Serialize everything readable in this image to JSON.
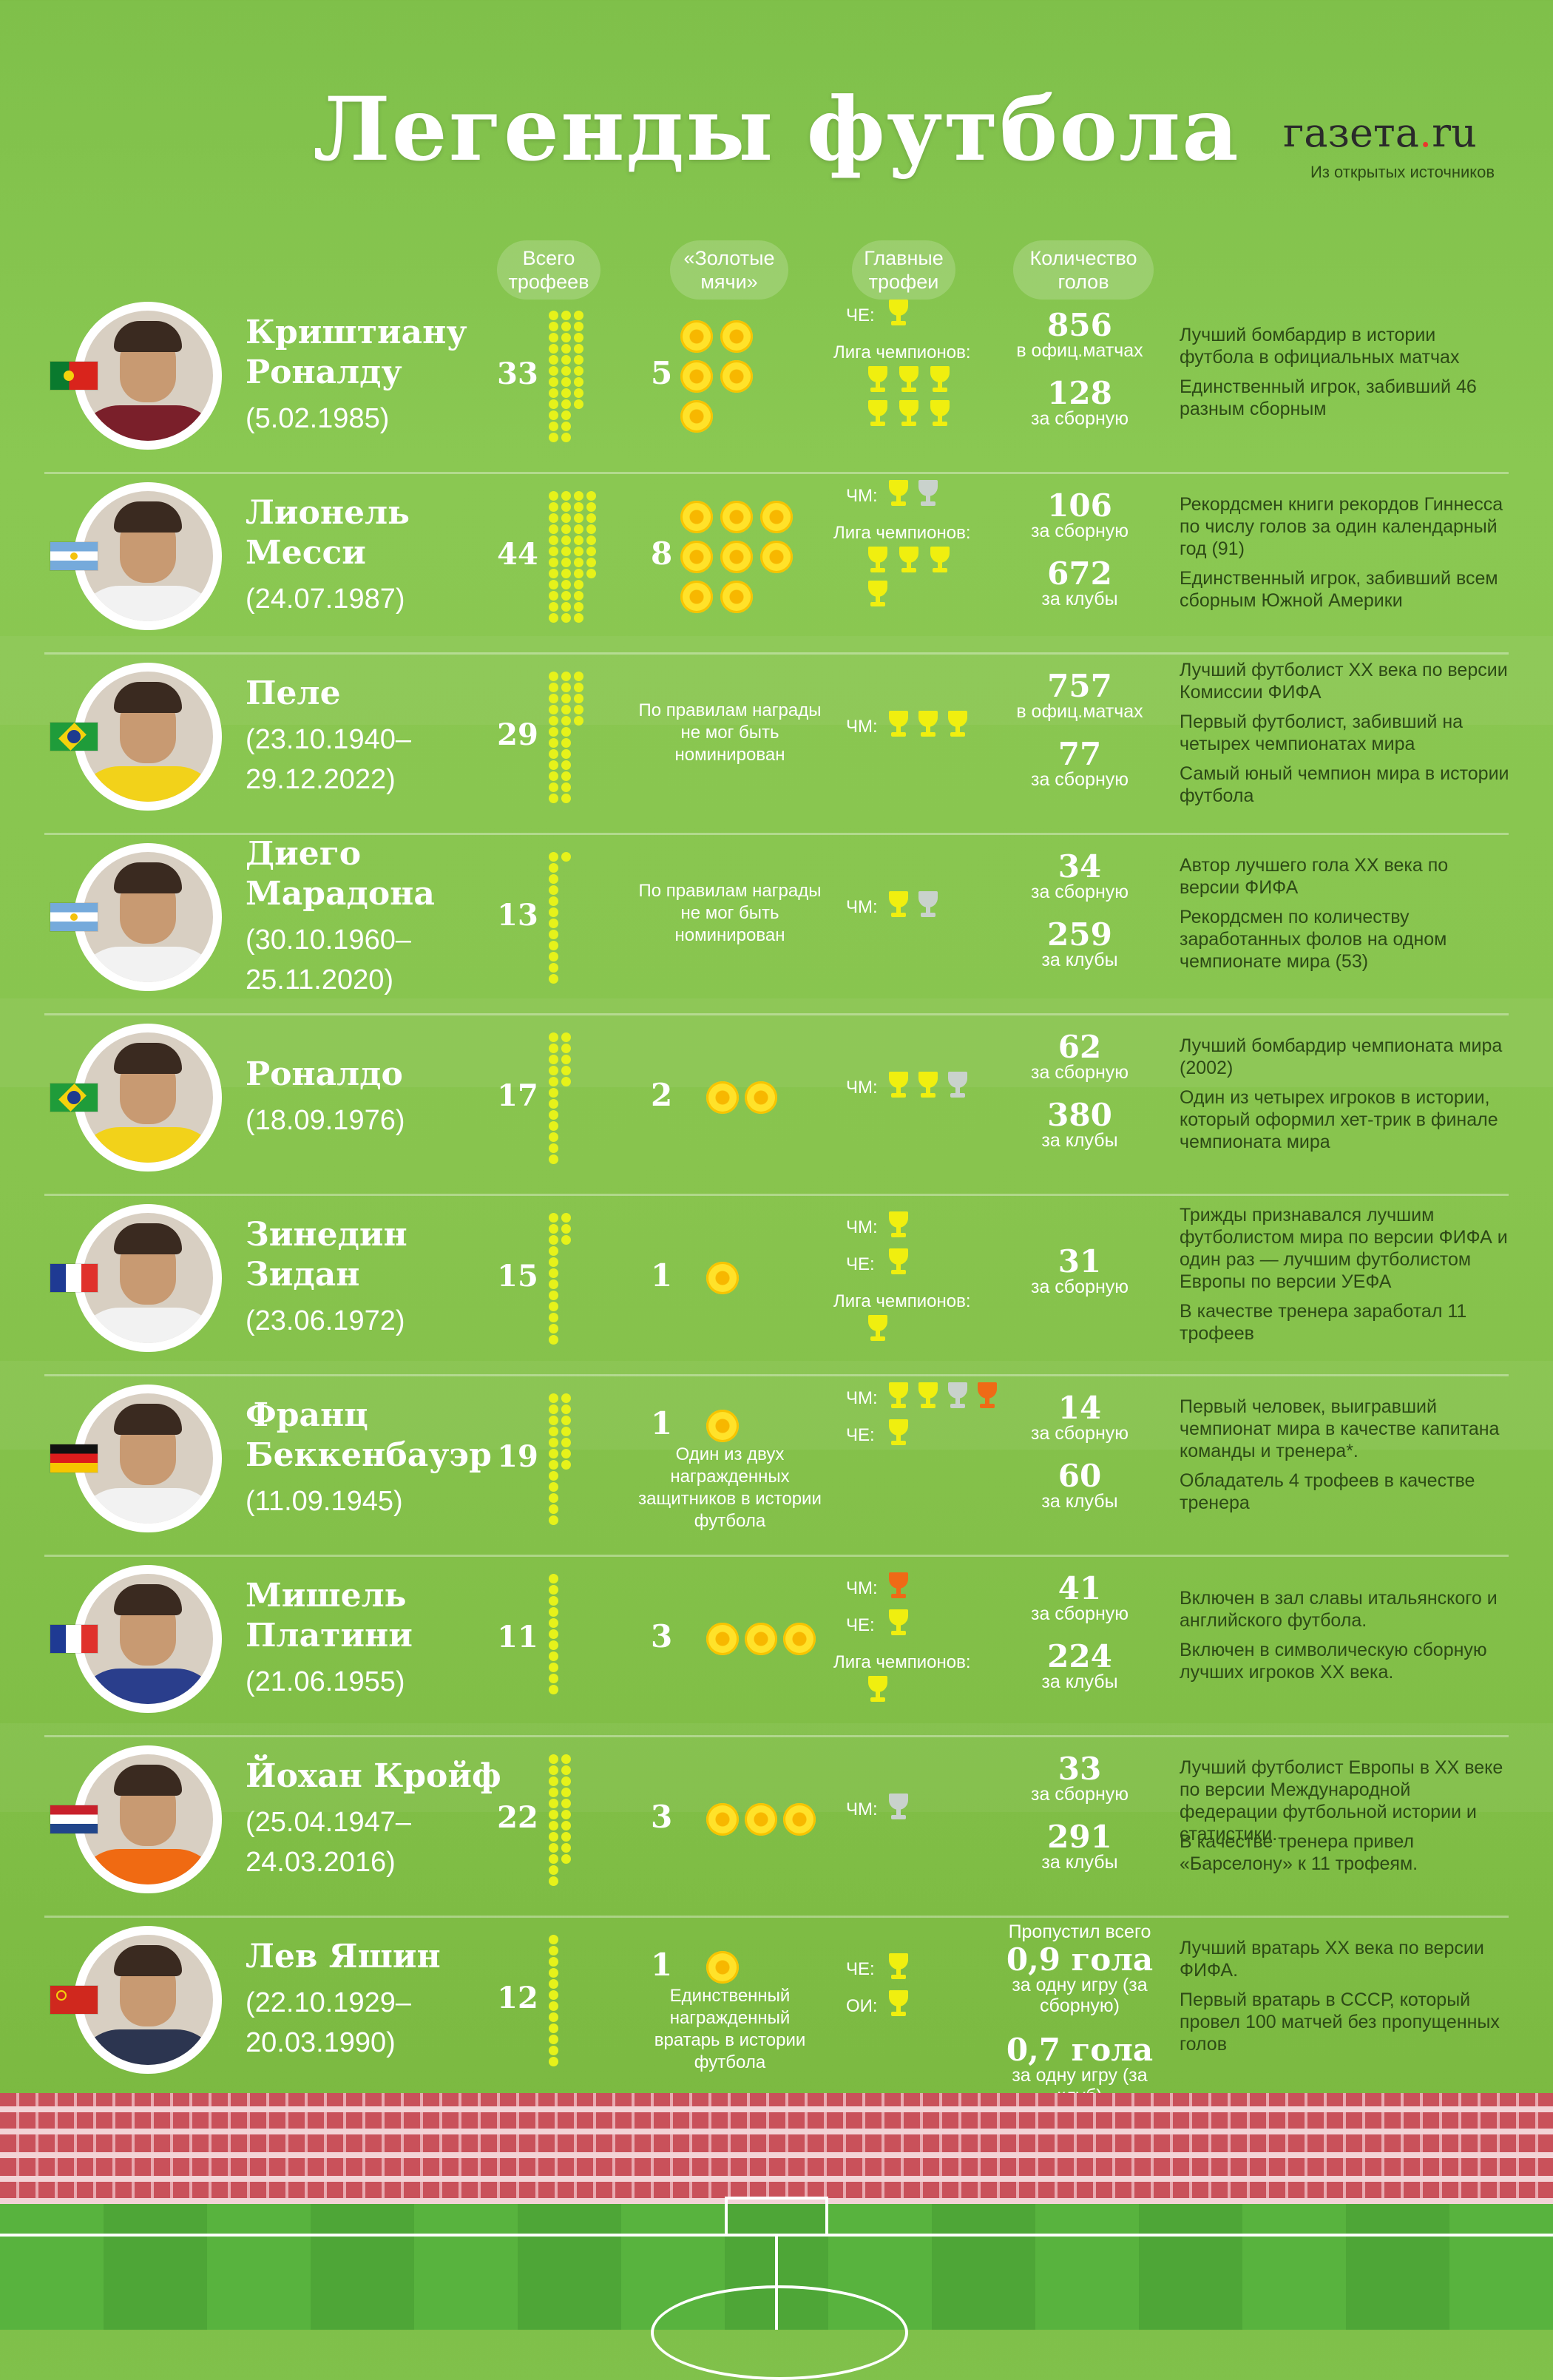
{
  "title": "Легенды футбола",
  "logo": {
    "prefix": "газета",
    "dot": ".",
    "suffix": "ru"
  },
  "source": "Из открытых источников",
  "columns": {
    "trophies": "Всего трофеев",
    "golden_balls": "«Золотые мячи»",
    "main_trophies": "Главные трофеи",
    "goals": "Количество голов"
  },
  "players": [
    {
      "name1": "Криштиану",
      "name2": "Роналду",
      "dates1": "(5.02.1985)",
      "dates2": "",
      "flag": "portugal",
      "total": "33",
      "cups": 33,
      "balls_num": "5",
      "balls": 5,
      "ball_note": "",
      "trophies": [
        {
          "label": "ЧЕ:",
          "cups": [
            "gold"
          ]
        },
        {
          "label": "Лига чемпионов:",
          "cups": [
            "gold",
            "gold",
            "gold",
            "gold",
            "gold",
            "gold"
          ]
        }
      ],
      "goals": [
        {
          "num": "856",
          "sub": "в офиц.матчах"
        },
        {
          "num": "128",
          "sub": "за сборную"
        }
      ],
      "facts": [
        "Лучший бомбардир в истории футбола в официальных матчах",
        "Единственный игрок, забивший 46 разным сборным"
      ],
      "shirt": "#7a1f2a"
    },
    {
      "name1": "Лионель",
      "name2": "Месси",
      "dates1": "(24.07.1987)",
      "dates2": "",
      "flag": "argentina",
      "total": "44",
      "cups": 44,
      "balls_num": "8",
      "balls": 8,
      "ball_note": "",
      "trophies": [
        {
          "label": "ЧМ:",
          "cups": [
            "gold",
            "silver"
          ]
        },
        {
          "label": "Лига чемпионов:",
          "cups": [
            "gold",
            "gold",
            "gold",
            "gold"
          ]
        }
      ],
      "goals": [
        {
          "num": "106",
          "sub": "за сборную"
        },
        {
          "num": "672",
          "sub": "за клубы"
        }
      ],
      "facts": [
        "Рекордсмен книги рекордов Гиннесса по числу голов за один календарный год (91)",
        "Единственный игрок, забивший всем сборным Южной Америки"
      ],
      "shirt": "#f2f2f2"
    },
    {
      "name1": "Пеле",
      "name2": "",
      "dates1": "(23.10.1940–",
      "dates2": "29.12.2022)",
      "flag": "brazil",
      "total": "29",
      "cups": 29,
      "balls_num": "",
      "balls": 0,
      "ball_note": "По правилам награды не мог быть номинирован",
      "trophies": [
        {
          "label": "ЧМ:",
          "cups": [
            "gold",
            "gold",
            "gold"
          ]
        }
      ],
      "goals": [
        {
          "num": "757",
          "sub": "в офиц.матчах"
        },
        {
          "num": "77",
          "sub": "за сборную"
        }
      ],
      "facts": [
        "Лучший футболист XX века по версии Комиссии ФИФА",
        "Первый футболист, забивший на четырех чемпионатах мира",
        "Самый юный чемпион мира в истории футбола"
      ],
      "shirt": "#f2d21a"
    },
    {
      "name1": "Диего",
      "name2": "Марадона",
      "dates1": "(30.10.1960–",
      "dates2": "25.11.2020)",
      "flag": "argentina",
      "total": "13",
      "cups": 13,
      "balls_num": "",
      "balls": 0,
      "ball_note": "По правилам награды не мог быть номинирован",
      "trophies": [
        {
          "label": "ЧМ:",
          "cups": [
            "gold",
            "silver"
          ]
        }
      ],
      "goals": [
        {
          "num": "34",
          "sub": "за сборную"
        },
        {
          "num": "259",
          "sub": "за клубы"
        }
      ],
      "facts": [
        "Автор лучшего гола XX века по версии ФИФА",
        "Рекордсмен по количеству заработанных фолов на одном чемпионате мира (53)"
      ],
      "shirt": "#f2f2f2"
    },
    {
      "name1": "Роналдо",
      "name2": "",
      "dates1": "(18.09.1976)",
      "dates2": "",
      "flag": "brazil",
      "total": "17",
      "cups": 17,
      "balls_num": "2",
      "balls": 2,
      "ball_note": "",
      "trophies": [
        {
          "label": "ЧМ:",
          "cups": [
            "gold",
            "gold",
            "silver"
          ]
        }
      ],
      "goals": [
        {
          "num": "62",
          "sub": "за сборную"
        },
        {
          "num": "380",
          "sub": "за клубы"
        }
      ],
      "facts": [
        "Лучший бомбардир чемпионата мира (2002)",
        "Один из четырех игроков в истории, который оформил хет-трик в финале чемпионата мира"
      ],
      "shirt": "#f2d21a"
    },
    {
      "name1": "Зинедин",
      "name2": "Зидан",
      "dates1": "(23.06.1972)",
      "dates2": "",
      "flag": "france",
      "total": "15",
      "cups": 15,
      "balls_num": "1",
      "balls": 1,
      "ball_note": "",
      "trophies": [
        {
          "label": "ЧМ:",
          "cups": [
            "gold"
          ]
        },
        {
          "label": "ЧЕ:",
          "cups": [
            "gold"
          ]
        },
        {
          "label": "Лига чемпионов:",
          "cups": [
            "gold"
          ]
        }
      ],
      "goals": [
        {
          "num": "31",
          "sub": "за сборную"
        }
      ],
      "facts": [
        "Трижды признавался лучшим футболистом мира по версии ФИФА и один раз — лучшим футболистом Европы по версии УЕФА",
        "В качестве тренера заработал 11 трофеев"
      ],
      "shirt": "#f2f2f2"
    },
    {
      "name1": "Франц",
      "name2": "Беккенбауэр",
      "dates1": "(11.09.1945)",
      "dates2": "",
      "flag": "germany",
      "total": "19",
      "cups": 19,
      "balls_num": "1",
      "balls": 1,
      "ball_note": "Один из двух награжденных защитников в истории футбола",
      "trophies": [
        {
          "label": "ЧМ:",
          "cups": [
            "gold",
            "gold",
            "silver",
            "bronze"
          ]
        },
        {
          "label": "ЧЕ:",
          "cups": [
            "gold"
          ]
        }
      ],
      "goals": [
        {
          "num": "14",
          "sub": "за сборную"
        },
        {
          "num": "60",
          "sub": "за клубы"
        }
      ],
      "facts": [
        "Первый человек, выигравший чемпионат мира в качестве капитана команды и тренера*.",
        "Обладатель 4 трофеев в качестве тренера"
      ],
      "shirt": "#f2f2f2"
    },
    {
      "name1": "Мишель",
      "name2": "Платини",
      "dates1": "(21.06.1955)",
      "dates2": "",
      "flag": "france",
      "total": "11",
      "cups": 11,
      "balls_num": "3",
      "balls": 3,
      "ball_note": "",
      "trophies": [
        {
          "label": "ЧМ:",
          "cups": [
            "bronze"
          ]
        },
        {
          "label": "ЧЕ:",
          "cups": [
            "gold"
          ]
        },
        {
          "label": "Лига чемпионов:",
          "cups": [
            "gold"
          ]
        }
      ],
      "goals": [
        {
          "num": "41",
          "sub": "за сборную"
        },
        {
          "num": "224",
          "sub": "за клубы"
        }
      ],
      "facts": [
        "Включен в зал славы итальянского и английского футбола.",
        "Включен в символическую сборную лучших игроков XX века."
      ],
      "shirt": "#2a3e8c"
    },
    {
      "name1": "Йохан Кройф",
      "name2": "",
      "dates1": "(25.04.1947–",
      "dates2": "24.03.2016)",
      "flag": "netherlands",
      "total": "22",
      "cups": 22,
      "balls_num": "3",
      "balls": 3,
      "ball_note": "",
      "trophies": [
        {
          "label": "ЧМ:",
          "cups": [
            "silver"
          ]
        }
      ],
      "goals": [
        {
          "num": "33",
          "sub": "за сборную"
        },
        {
          "num": "291",
          "sub": "за клубы"
        }
      ],
      "facts": [
        "Лучший футболист Европы в XX веке по версии Международной федерации футбольной истории и статистики.",
        "В качестве тренера привел «Барселону» к 11 трофеям."
      ],
      "shirt": "#f06a12"
    },
    {
      "name1": "Лев Яшин",
      "name2": "",
      "dates1": "(22.10.1929–",
      "dates2": "20.03.1990)",
      "flag": "ussr",
      "total": "12",
      "cups": 12,
      "balls_num": "1",
      "balls": 1,
      "ball_note": "Единственный награжденный вратарь в истории футбола",
      "trophies": [
        {
          "label": "ЧЕ:",
          "cups": [
            "gold"
          ]
        },
        {
          "label": "ОИ:",
          "cups": [
            "gold"
          ]
        }
      ],
      "goals_top": "Пропустил всего",
      "goals": [
        {
          "num": "0,9 гола",
          "sub": "за одну игру (за сборную)"
        },
        {
          "num": "0,7 гола",
          "sub": "за одну игру (за клуб)"
        }
      ],
      "facts": [
        "Лучший вратарь XX века по версии ФИФА.",
        "Первый вратарь в СССР, который провел 100 матчей без пропущенных голов"
      ],
      "shirt": "#2c3550"
    }
  ],
  "colors": {
    "gold": "#f0ef0f",
    "silver": "#c9d2cc",
    "bronze": "#ef6a16",
    "cup_dot": "#e6f21a",
    "fact_text": "#2d4a16"
  }
}
